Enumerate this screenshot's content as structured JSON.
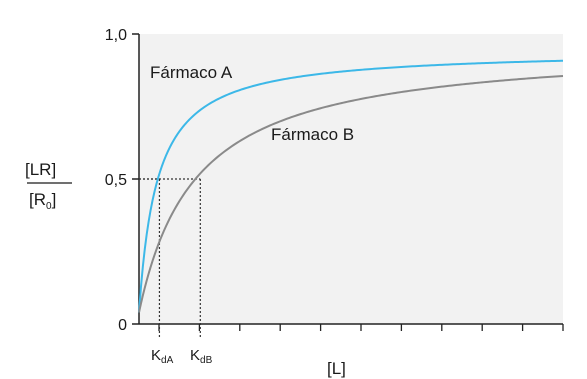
{
  "chart_data": {
    "type": "line",
    "title": "",
    "xlabel": "[L]",
    "ylabel": {
      "numerator": "[LR]",
      "denominator_main": "[R",
      "denominator_sub": "0",
      "denominator_end": "]"
    },
    "ylim": [
      0,
      1
    ],
    "y_ticks": [
      {
        "value": 0,
        "label": "0"
      },
      {
        "value": 0.5,
        "label": "0,5"
      },
      {
        "value": 1.0,
        "label": "1,0"
      }
    ],
    "x_tick_count": 11,
    "x_markers": [
      {
        "name": "KdA",
        "main": "K",
        "sub": "dA",
        "x": 0.4,
        "y": 0.5
      },
      {
        "name": "KdB",
        "main": "K",
        "sub": "dB",
        "x": 1.2,
        "y": 0.5
      }
    ],
    "series": [
      {
        "name": "Fármaco A",
        "color": "#3cb8e8",
        "kd": 0.4,
        "max": 0.945
      },
      {
        "name": "Fármaco B",
        "color": "#8a8a8a",
        "kd": 1.2,
        "max": 0.965
      }
    ],
    "x_max": 8.3,
    "grid": false,
    "background": "#f2f2f2"
  }
}
